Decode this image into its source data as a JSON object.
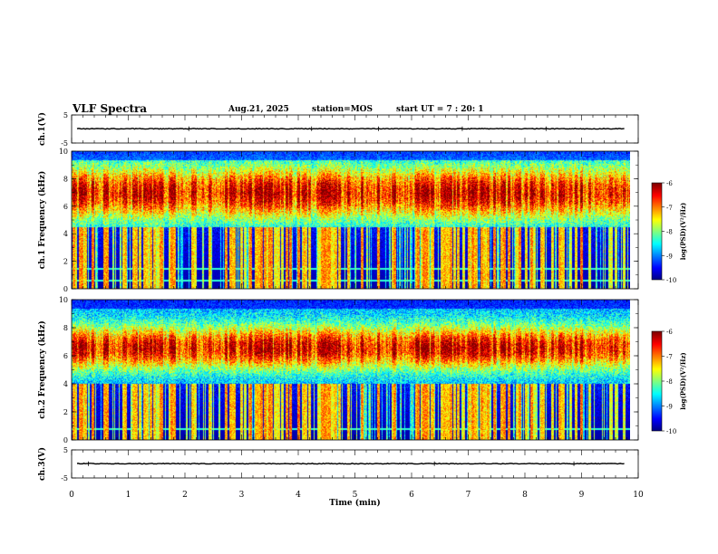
{
  "header": {
    "title": "VLF Spectra",
    "date": "Aug.21, 2025",
    "station": "station=MOS",
    "start_ut": "start UT =  7 : 20: 1"
  },
  "chart_data": [
    {
      "id": "ch1-voltage",
      "type": "line",
      "ylabel": "ch.1(V)",
      "ylim": [
        -5,
        5
      ],
      "yticks": [
        "5",
        "-5"
      ],
      "level": 0.1,
      "spikes": [
        0.21,
        0.43,
        0.55,
        0.7,
        0.85
      ]
    },
    {
      "id": "ch1-spectrogram",
      "type": "heatmap",
      "ylabel": "ch.1 Frequency (kHz)",
      "ylim": [
        0,
        10
      ],
      "yticks": [
        "0",
        "2",
        "4",
        "6",
        "8",
        "10"
      ],
      "band_center_khz": 7.0,
      "band_width_khz": 2.0,
      "band_floor_khz": 4.5,
      "lines_khz": [
        0.6,
        1.5
      ],
      "colorbar": {
        "label": "log(PSD)(V²/Hz)",
        "ticks": [
          "-6",
          "-7",
          "-8",
          "-9",
          "-10"
        ],
        "range": [
          -10,
          -6
        ]
      }
    },
    {
      "id": "ch2-spectrogram",
      "type": "heatmap",
      "ylabel": "ch.2 Frequency (kHz)",
      "ylim": [
        0,
        10
      ],
      "yticks": [
        "0",
        "2",
        "4",
        "6",
        "8",
        "10"
      ],
      "band_center_khz": 6.6,
      "band_width_khz": 1.6,
      "band_floor_khz": 4.0,
      "lines_khz": [
        0.8
      ],
      "colorbar": {
        "label": "log(PSD)(V²/Hz)",
        "ticks": [
          "-6",
          "-7",
          "-8",
          "-9",
          "-10"
        ],
        "range": [
          -10,
          -6
        ]
      }
    },
    {
      "id": "ch3-voltage",
      "type": "line",
      "ylabel": "ch.3(V)",
      "ylim": [
        -5,
        5
      ],
      "yticks": [
        "5",
        "-5"
      ],
      "level": 0.1,
      "spikes": [
        0.03,
        0.65,
        0.9
      ]
    }
  ],
  "xaxis": {
    "label": "Time (min)",
    "range": [
      0,
      10
    ],
    "ticks": [
      "0",
      "1",
      "2",
      "3",
      "4",
      "5",
      "6",
      "7",
      "8",
      "9",
      "10"
    ],
    "data_end_min": 9.85
  },
  "colors": {
    "background": "#ffffff",
    "axis": "#000000"
  }
}
